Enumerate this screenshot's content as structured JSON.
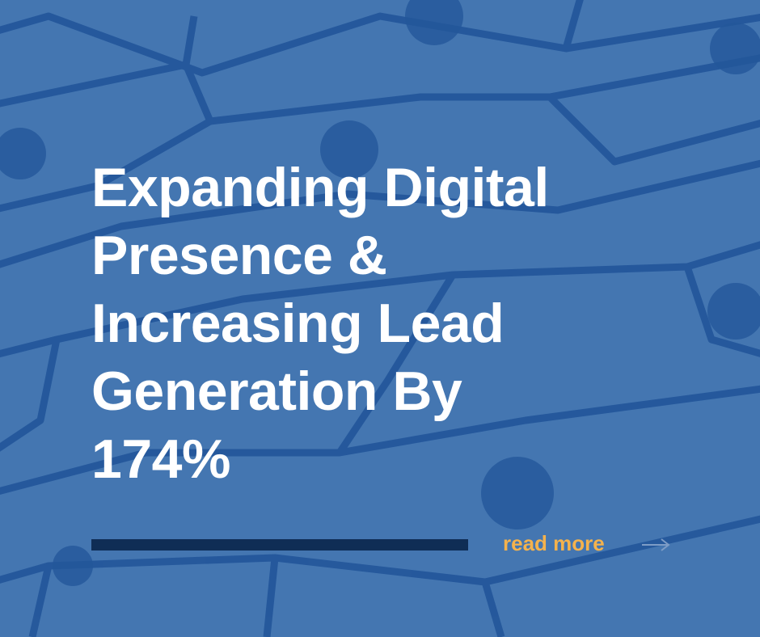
{
  "card": {
    "title_lines": [
      "Expanding Digital",
      "Presence &",
      "Increasing Lead",
      "Generation By",
      "174%"
    ],
    "link": "read more"
  }
}
